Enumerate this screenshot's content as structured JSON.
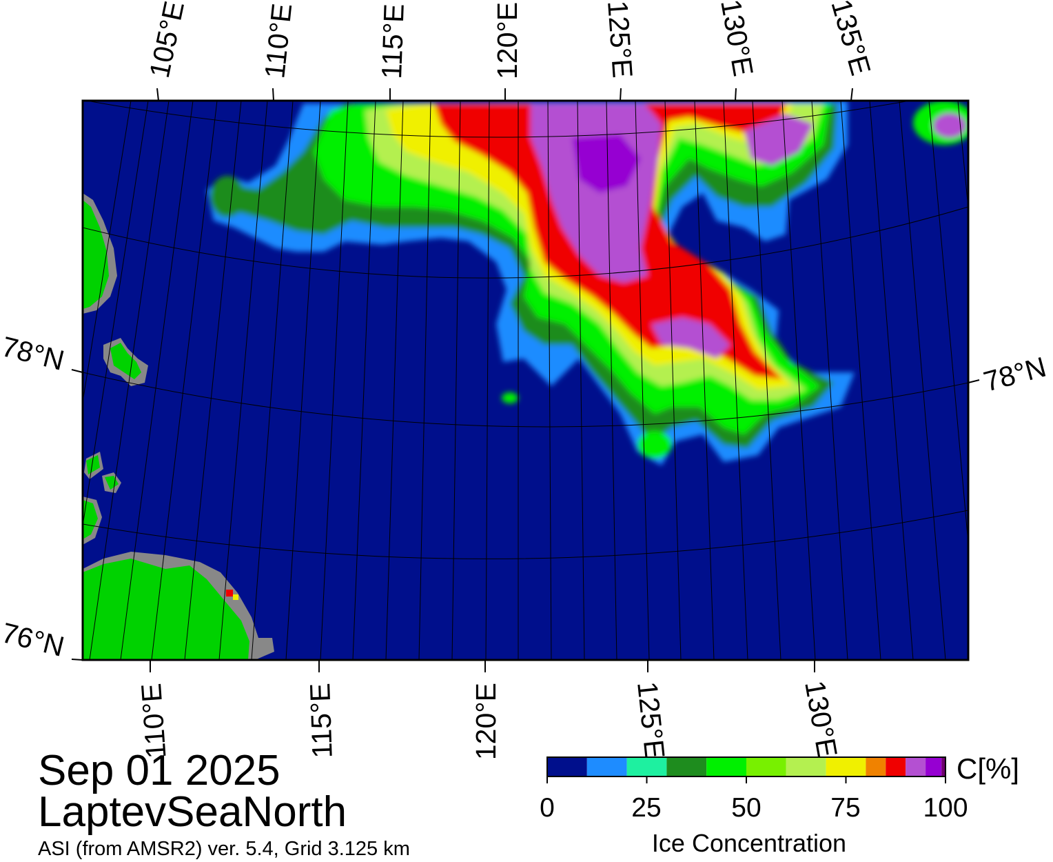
{
  "title": {
    "date": "Sep 01 2025",
    "region": "LaptevSeaNorth",
    "product": "ASI (from AMSR2) ver. 5.4,  Grid 3.125 km"
  },
  "map": {
    "projection": "polar stereographic",
    "parallels_labeled": [
      "78°N",
      "76°N"
    ],
    "top_meridian_labels": [
      "105°E",
      "110°E",
      "115°E",
      "120°E",
      "125°E",
      "130°E",
      "135°E"
    ],
    "bottom_meridian_labels": [
      "110°E",
      "115°E",
      "120°E",
      "125°E",
      "130°E"
    ],
    "right_parallel_labels": [
      "78°N"
    ],
    "colors": {
      "ocean": "#000f8c",
      "land": "#00d200",
      "land_mask": "#888888",
      "graticule": "#000000"
    },
    "ice_field": "high concentration ice edge in the north-central Laptev Sea, roughly 118°E–133°E north of 77.5°N, plus ice near the top edge 110°E–135°E",
    "land_areas": "Severnaya Zemlya / Taymyr coast on the left and lower-left, small islands near 108°E"
  },
  "legend": {
    "unit": "C[%]",
    "label": "Ice Concentration",
    "ticks": [
      "0",
      "25",
      "50",
      "75",
      "100"
    ],
    "bins": [
      {
        "from": 0,
        "to": 10,
        "color": "#000f8c"
      },
      {
        "from": 10,
        "to": 20,
        "color": "#1e8cff"
      },
      {
        "from": 20,
        "to": 30,
        "color": "#1ef0a0"
      },
      {
        "from": 30,
        "to": 40,
        "color": "#1e8c1e"
      },
      {
        "from": 40,
        "to": 50,
        "color": "#00f000"
      },
      {
        "from": 50,
        "to": 60,
        "color": "#78f000"
      },
      {
        "from": 60,
        "to": 70,
        "color": "#b4f050"
      },
      {
        "from": 70,
        "to": 80,
        "color": "#f0f000"
      },
      {
        "from": 80,
        "to": 85,
        "color": "#f08200"
      },
      {
        "from": 85,
        "to": 90,
        "color": "#f00000"
      },
      {
        "from": 90,
        "to": 95,
        "color": "#b450d2"
      },
      {
        "from": 95,
        "to": 99,
        "color": "#9600d2"
      },
      {
        "from": 99,
        "to": 100,
        "color": "#6e006e"
      }
    ]
  }
}
